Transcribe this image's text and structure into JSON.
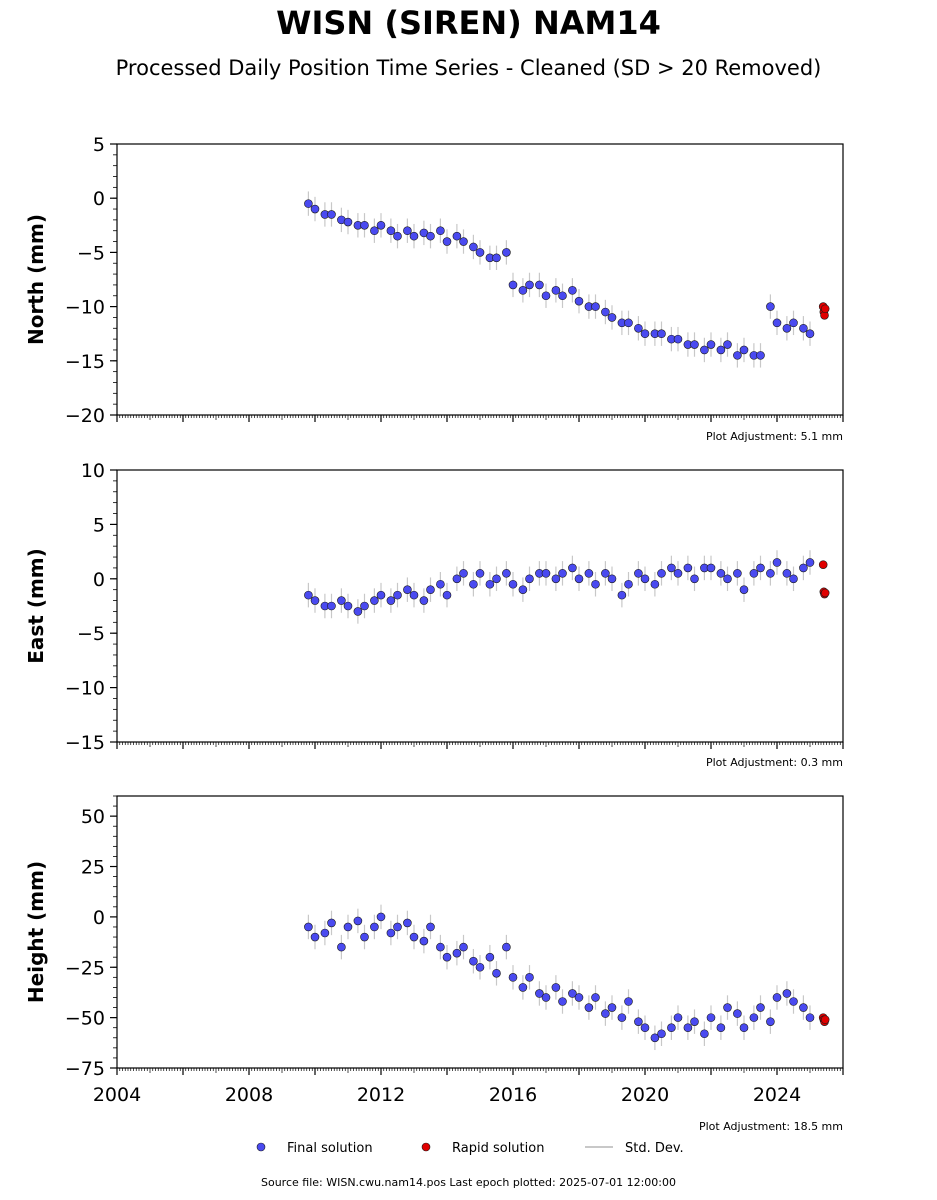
{
  "title": "WISN (SIREN) NAM14",
  "subtitle": "Processed Daily Position Time Series - Cleaned (SD > 20 Removed)",
  "source_text": "Source file: WISN.cwu.nam14.pos  Last epoch plotted: 2025-07-01 12:00:00",
  "colors": {
    "final": "#4a4af0",
    "rapid": "#e00000",
    "stddev": "#c8c8c8",
    "edge": "#1a1a1a"
  },
  "legend": {
    "final": "Final solution",
    "rapid": "Rapid solution",
    "stddev": "Std. Dev."
  },
  "chart_data": [
    {
      "type": "scatter",
      "ylabel": "North (mm)",
      "adjustment": "Plot Adjustment: 5.1 mm",
      "ylim": [
        -20,
        5
      ],
      "yticks": [
        5,
        0,
        -5,
        -10,
        -15,
        -20
      ],
      "ytick_labels": [
        "5",
        "0",
        "−5",
        "−10",
        "−15",
        "−20"
      ],
      "xlim": [
        2004,
        2026
      ],
      "series": [
        {
          "name": "Final solution",
          "x": [
            2009.8,
            2010.0,
            2010.3,
            2010.5,
            2010.8,
            2011.0,
            2011.3,
            2011.5,
            2011.8,
            2012.0,
            2012.3,
            2012.5,
            2012.8,
            2013.0,
            2013.3,
            2013.5,
            2013.8,
            2014.0,
            2014.3,
            2014.5,
            2014.8,
            2015.0,
            2015.3,
            2015.5,
            2015.8,
            2016.0,
            2016.3,
            2016.5,
            2016.8,
            2017.0,
            2017.3,
            2017.5,
            2017.8,
            2018.0,
            2018.3,
            2018.5,
            2018.8,
            2019.0,
            2019.3,
            2019.5,
            2019.8,
            2020.0,
            2020.3,
            2020.5,
            2020.8,
            2021.0,
            2021.3,
            2021.5,
            2021.8,
            2022.0,
            2022.3,
            2022.5,
            2022.8,
            2023.0,
            2023.3,
            2023.5,
            2023.8,
            2024.0,
            2024.3,
            2024.5,
            2024.8,
            2025.0
          ],
          "y": [
            -0.5,
            -1.0,
            -1.5,
            -1.5,
            -2.0,
            -2.2,
            -2.5,
            -2.5,
            -3.0,
            -2.5,
            -3.0,
            -3.5,
            -3.0,
            -3.5,
            -3.2,
            -3.5,
            -3.0,
            -4.0,
            -3.5,
            -4.0,
            -4.5,
            -5.0,
            -5.5,
            -5.5,
            -5.0,
            -8.0,
            -8.5,
            -8.0,
            -8.0,
            -9.0,
            -8.5,
            -9.0,
            -8.5,
            -9.5,
            -10.0,
            -10.0,
            -10.5,
            -11.0,
            -11.5,
            -11.5,
            -12.0,
            -12.5,
            -12.5,
            -12.5,
            -13.0,
            -13.0,
            -13.5,
            -13.5,
            -14.0,
            -13.5,
            -14.0,
            -13.5,
            -14.5,
            -14.0,
            -14.5,
            -14.5,
            -10.0,
            -11.5,
            -12.0,
            -11.5,
            -12.0,
            -12.5
          ]
        },
        {
          "name": "Rapid solution",
          "x": [
            2025.4,
            2025.42,
            2025.44,
            2025.46
          ],
          "y": [
            -10.0,
            -10.5,
            -10.8,
            -10.2
          ]
        }
      ]
    },
    {
      "type": "scatter",
      "ylabel": "East (mm)",
      "adjustment": "Plot Adjustment: 0.3 mm",
      "ylim": [
        -15,
        10
      ],
      "yticks": [
        10,
        5,
        0,
        -5,
        -10,
        -15
      ],
      "ytick_labels": [
        "10",
        "5",
        "0",
        "−5",
        "−10",
        "−15"
      ],
      "xlim": [
        2004,
        2026
      ],
      "series": [
        {
          "name": "Final solution",
          "x": [
            2009.8,
            2010.0,
            2010.3,
            2010.5,
            2010.8,
            2011.0,
            2011.3,
            2011.5,
            2011.8,
            2012.0,
            2012.3,
            2012.5,
            2012.8,
            2013.0,
            2013.3,
            2013.5,
            2013.8,
            2014.0,
            2014.3,
            2014.5,
            2014.8,
            2015.0,
            2015.3,
            2015.5,
            2015.8,
            2016.0,
            2016.3,
            2016.5,
            2016.8,
            2017.0,
            2017.3,
            2017.5,
            2017.8,
            2018.0,
            2018.3,
            2018.5,
            2018.8,
            2019.0,
            2019.3,
            2019.5,
            2019.8,
            2020.0,
            2020.3,
            2020.5,
            2020.8,
            2021.0,
            2021.3,
            2021.5,
            2021.8,
            2022.0,
            2022.3,
            2022.5,
            2022.8,
            2023.0,
            2023.3,
            2023.5,
            2023.8,
            2024.0,
            2024.3,
            2024.5,
            2024.8,
            2025.0
          ],
          "y": [
            -1.5,
            -2.0,
            -2.5,
            -2.5,
            -2.0,
            -2.5,
            -3.0,
            -2.5,
            -2.0,
            -1.5,
            -2.0,
            -1.5,
            -1.0,
            -1.5,
            -2.0,
            -1.0,
            -0.5,
            -1.5,
            0.0,
            0.5,
            -0.5,
            0.5,
            -0.5,
            0.0,
            0.5,
            -0.5,
            -1.0,
            0.0,
            0.5,
            0.5,
            0.0,
            0.5,
            1.0,
            0.0,
            0.5,
            -0.5,
            0.5,
            0.0,
            -1.5,
            -0.5,
            0.5,
            0.0,
            -0.5,
            0.5,
            1.0,
            0.5,
            1.0,
            0.0,
            1.0,
            1.0,
            0.5,
            0.0,
            0.5,
            -1.0,
            0.5,
            1.0,
            0.5,
            1.5,
            0.5,
            0.0,
            1.0,
            1.5
          ]
        },
        {
          "name": "Rapid solution",
          "x": [
            2025.4,
            2025.42,
            2025.44,
            2025.46
          ],
          "y": [
            1.3,
            -1.2,
            -1.4,
            -1.3
          ]
        }
      ]
    },
    {
      "type": "scatter",
      "ylabel": "Height (mm)",
      "adjustment": "Plot Adjustment: 18.5 mm",
      "ylim": [
        -75,
        60
      ],
      "yticks": [
        50,
        25,
        0,
        -25,
        -50,
        -75
      ],
      "ytick_labels": [
        "50",
        "25",
        "0",
        "−25",
        "−50",
        "−75"
      ],
      "xlim": [
        2004,
        2026
      ],
      "xticks": [
        2004,
        2008,
        2012,
        2016,
        2020,
        2024
      ],
      "xtick_labels": [
        "2004",
        "2008",
        "2012",
        "2016",
        "2020",
        "2024"
      ],
      "series": [
        {
          "name": "Final solution",
          "x": [
            2009.8,
            2010.0,
            2010.3,
            2010.5,
            2010.8,
            2011.0,
            2011.3,
            2011.5,
            2011.8,
            2012.0,
            2012.3,
            2012.5,
            2012.8,
            2013.0,
            2013.3,
            2013.5,
            2013.8,
            2014.0,
            2014.3,
            2014.5,
            2014.8,
            2015.0,
            2015.3,
            2015.5,
            2015.8,
            2016.0,
            2016.3,
            2016.5,
            2016.8,
            2017.0,
            2017.3,
            2017.5,
            2017.8,
            2018.0,
            2018.3,
            2018.5,
            2018.8,
            2019.0,
            2019.3,
            2019.5,
            2019.8,
            2020.0,
            2020.3,
            2020.5,
            2020.8,
            2021.0,
            2021.3,
            2021.5,
            2021.8,
            2022.0,
            2022.3,
            2022.5,
            2022.8,
            2023.0,
            2023.3,
            2023.5,
            2023.8,
            2024.0,
            2024.3,
            2024.5,
            2024.8,
            2025.0
          ],
          "y": [
            -5,
            -10,
            -8,
            -3,
            -15,
            -5,
            -2,
            -10,
            -5,
            0,
            -8,
            -5,
            -3,
            -10,
            -12,
            -5,
            -15,
            -20,
            -18,
            -15,
            -22,
            -25,
            -20,
            -28,
            -15,
            -30,
            -35,
            -30,
            -38,
            -40,
            -35,
            -42,
            -38,
            -40,
            -45,
            -40,
            -48,
            -45,
            -50,
            -42,
            -52,
            -55,
            -60,
            -58,
            -55,
            -50,
            -55,
            -52,
            -58,
            -50,
            -55,
            -45,
            -48,
            -55,
            -50,
            -45,
            -52,
            -40,
            -38,
            -42,
            -45,
            -50
          ]
        },
        {
          "name": "Rapid solution",
          "x": [
            2025.4,
            2025.42,
            2025.44,
            2025.46
          ],
          "y": [
            -50,
            -51,
            -52,
            -51
          ]
        }
      ]
    }
  ]
}
